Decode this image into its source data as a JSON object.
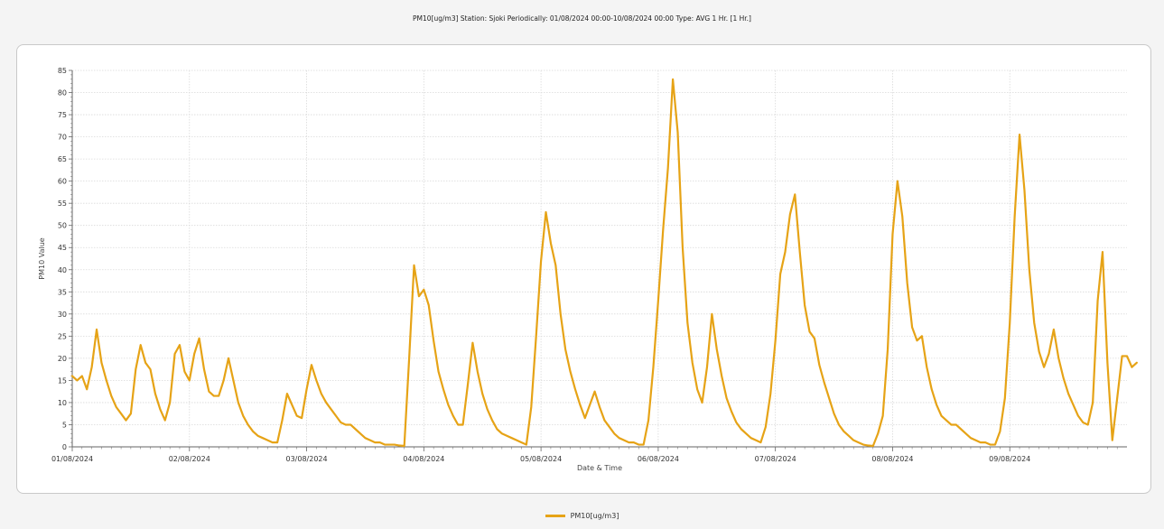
{
  "title": "PM10[ug/m3] Station: Sjoki  Periodically: 01/08/2024 00:00-10/08/2024 00:00  Type: AVG 1 Hr. [1 Hr.]",
  "legend_label": "PM10[ug/m3]",
  "colors": {
    "series": "#e6a316",
    "grid": "#d9d9d9",
    "axis": "#666666"
  },
  "chart_data": {
    "type": "line",
    "title": "PM10[ug/m3] Station: Sjoki  Periodically: 01/08/2024 00:00-10/08/2024 00:00  Type: AVG 1 Hr. [1 Hr.]",
    "xlabel": "Date & Time",
    "ylabel": "PM10 Value",
    "ylim": [
      0,
      85
    ],
    "xlim_days": [
      0,
      9
    ],
    "grid": true,
    "legend_position": "bottom-center",
    "y_ticks": [
      0,
      5,
      10,
      15,
      20,
      25,
      30,
      35,
      40,
      45,
      50,
      55,
      60,
      65,
      70,
      75,
      80,
      85
    ],
    "x_ticks": [
      "01/08/2024",
      "02/08/2024",
      "03/08/2024",
      "04/08/2024",
      "05/08/2024",
      "06/08/2024",
      "07/08/2024",
      "08/08/2024",
      "09/08/2024"
    ],
    "series": [
      {
        "name": "PM10[ug/m3]",
        "x_start": "01/08/2024 00:00",
        "x_step": "1 Hr.",
        "values": [
          16,
          15,
          16,
          13,
          18,
          26.5,
          19,
          15,
          11.5,
          9,
          7.5,
          6,
          7.5,
          17.5,
          23,
          19,
          17.5,
          12,
          8.5,
          6,
          10,
          21,
          23,
          17,
          15,
          21,
          24.5,
          17.5,
          12.5,
          11.5,
          11.5,
          15,
          20,
          15,
          10,
          7,
          5,
          3.5,
          2.5,
          2,
          1.5,
          1,
          1,
          6,
          12,
          9.5,
          7,
          6.5,
          13,
          18.5,
          15,
          12,
          10,
          8.5,
          7,
          5.5,
          5,
          5,
          4,
          3,
          2,
          1.5,
          1,
          1,
          0.5,
          0.5,
          0.5,
          0.3,
          0.2,
          20,
          41,
          34,
          35.5,
          32,
          24,
          17,
          13,
          9.5,
          7,
          5,
          5,
          14,
          23.5,
          17,
          12,
          8.5,
          6,
          4,
          3,
          2.5,
          2,
          1.5,
          1,
          0.5,
          9,
          25,
          42,
          53,
          46,
          41,
          30,
          22,
          17,
          13,
          9.5,
          6.5,
          9.5,
          12.5,
          9,
          6,
          4.5,
          3,
          2,
          1.5,
          1,
          1,
          0.5,
          0.5,
          6,
          18,
          33,
          49,
          63,
          83,
          71,
          45,
          28,
          19,
          13,
          10,
          18,
          30,
          22,
          16,
          11,
          8,
          5.5,
          4,
          3,
          2,
          1.5,
          1,
          4.5,
          12,
          24,
          39,
          44,
          52.5,
          57,
          44,
          32,
          26,
          24.5,
          18.5,
          14.5,
          11,
          7.5,
          5,
          3.5,
          2.5,
          1.5,
          1,
          0.5,
          0.3,
          0.2,
          3,
          7,
          22,
          48,
          60,
          52,
          37,
          27,
          24,
          25,
          18,
          13,
          9.5,
          7,
          6,
          5,
          5,
          4,
          3,
          2,
          1.5,
          1,
          1,
          0.5,
          0.5,
          3.5,
          11,
          28,
          52,
          70.5,
          58,
          40,
          28,
          21.5,
          18,
          21,
          26.5,
          20,
          15.5,
          12,
          9.5,
          7,
          5.5,
          5,
          10,
          33,
          44,
          19,
          1.5,
          11,
          20.5,
          20.5,
          18,
          19
        ]
      }
    ]
  }
}
